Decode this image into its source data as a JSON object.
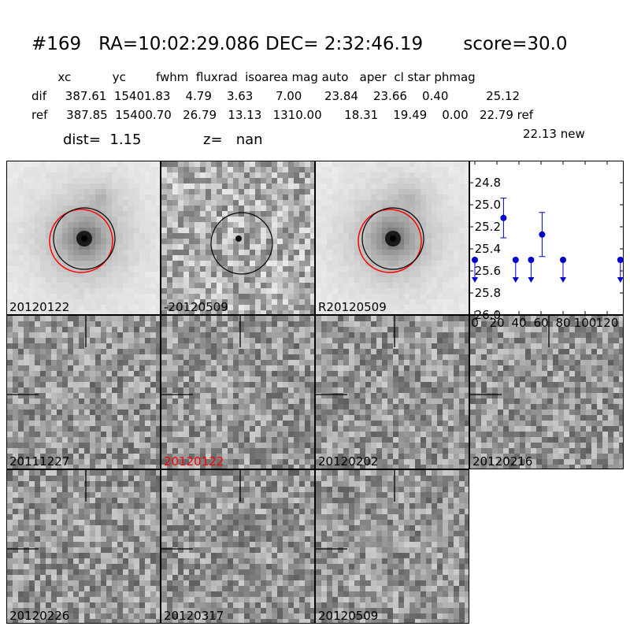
{
  "header": {
    "title": "#169   RA=10:02:29.086 DEC= 2:32:46.19       score=30.0"
  },
  "table": {
    "header_line": "       xc           yc        fwhm  fluxrad  isoarea mag auto   aper  cl star phmag",
    "dif_line": "dif     387.61  15401.83    4.79    3.63      7.00      23.84    23.66    0.40          25.12",
    "ref_line": "ref     387.85  15400.70   26.79   13.13   1310.00      18.31    19.49    0.00   22.79 ref",
    "new_line": "22.13 new"
  },
  "info": {
    "dist": "dist=  1.15",
    "z": "z=   nan"
  },
  "panels": [
    {
      "label": "20120122",
      "label_color": "#000000",
      "kind": "galaxy",
      "circles": [
        "#ff0000",
        "#000000"
      ]
    },
    {
      "label": "-20120509",
      "label_color": "#000000",
      "kind": "diff",
      "circles": [
        "#000000"
      ]
    },
    {
      "label": "R20120509",
      "label_color": "#000000",
      "kind": "galaxy",
      "circles": [
        "#ff0000",
        "#000000"
      ]
    },
    {
      "label": "20111227",
      "label_color": "#000000",
      "kind": "noise",
      "crosshair": true
    },
    {
      "label": "20120122",
      "label_color": "#ff0000",
      "kind": "noise",
      "crosshair": true
    },
    {
      "label": "20120202",
      "label_color": "#000000",
      "kind": "noise",
      "crosshair": true
    },
    {
      "label": "20120216",
      "label_color": "#000000",
      "kind": "noise",
      "crosshair": true
    },
    {
      "label": "20120226",
      "label_color": "#000000",
      "kind": "noise",
      "crosshair": true
    },
    {
      "label": "20120317",
      "label_color": "#000000",
      "kind": "noise",
      "crosshair": true
    },
    {
      "label": "20120509",
      "label_color": "#000000",
      "kind": "noise",
      "crosshair": true
    }
  ],
  "chart_data": {
    "type": "scatter",
    "title": "",
    "xlabel": "",
    "ylabel": "",
    "xlim": [
      -5,
      135
    ],
    "ylim": [
      26.0,
      24.6
    ],
    "y_inverted": true,
    "x_ticks": [
      "0",
      "20",
      "40",
      "60",
      "80",
      "100",
      "120"
    ],
    "y_ticks": [
      "24.8",
      "25.0",
      "25.2",
      "25.4",
      "25.6",
      "25.8",
      "26.0"
    ],
    "color": "#0000cc",
    "detections": [
      {
        "x": 26,
        "y": 25.12,
        "err": 0.18
      },
      {
        "x": 61,
        "y": 25.27,
        "err": 0.2
      }
    ],
    "upper_limits": [
      {
        "x": 0,
        "y": 25.5
      },
      {
        "x": 37,
        "y": 25.5
      },
      {
        "x": 51,
        "y": 25.5
      },
      {
        "x": 80,
        "y": 25.5
      },
      {
        "x": 132,
        "y": 25.5
      }
    ]
  }
}
